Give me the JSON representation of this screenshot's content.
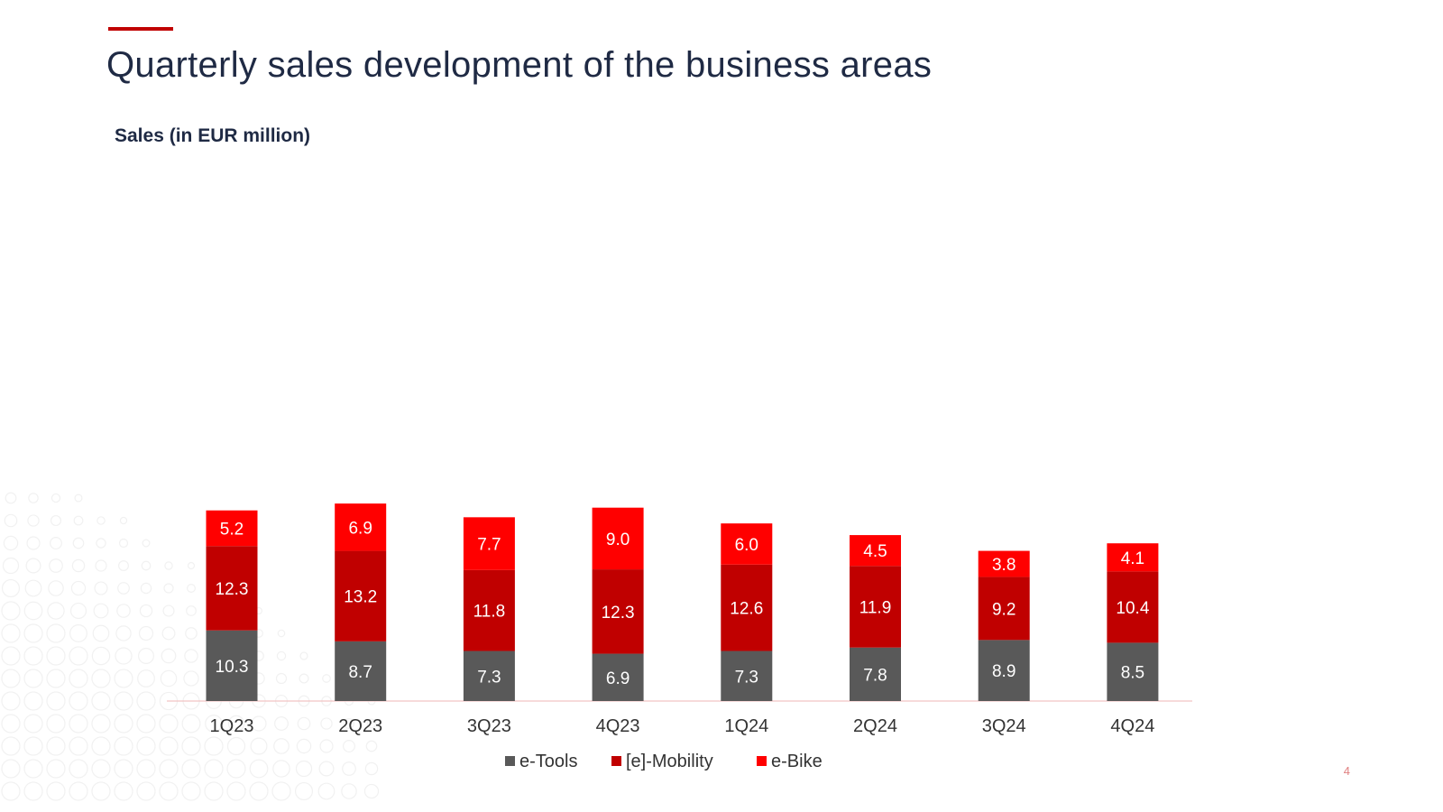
{
  "header": {
    "title": "Quarterly sales development of the business areas",
    "subtitle": "Sales (in EUR million)"
  },
  "page_number": "4",
  "colors": {
    "accent": "#c00000",
    "etools": "#595959",
    "emobility": "#c00000",
    "ebike": "#ff0000",
    "title_text": "#1f2a44"
  },
  "chart_data": {
    "type": "bar",
    "stacked": true,
    "title": "Sales (in EUR million)",
    "xlabel": "",
    "ylabel": "",
    "ylim": [
      0,
      30
    ],
    "categories": [
      "1Q23",
      "2Q23",
      "3Q23",
      "4Q23",
      "1Q24",
      "2Q24",
      "3Q24",
      "4Q24"
    ],
    "series": [
      {
        "name": "e-Tools",
        "color": "#595959",
        "values": [
          10.3,
          8.7,
          7.3,
          6.9,
          7.3,
          7.8,
          8.9,
          8.5
        ]
      },
      {
        "name": "[e]-Mobility",
        "color": "#c00000",
        "values": [
          12.3,
          13.2,
          11.8,
          12.3,
          12.6,
          11.9,
          9.2,
          10.4
        ]
      },
      {
        "name": "e-Bike",
        "color": "#ff0000",
        "values": [
          5.2,
          6.9,
          7.7,
          9.0,
          6.0,
          4.5,
          3.8,
          4.1
        ]
      }
    ],
    "legend": "bottom-center",
    "grid": false
  }
}
